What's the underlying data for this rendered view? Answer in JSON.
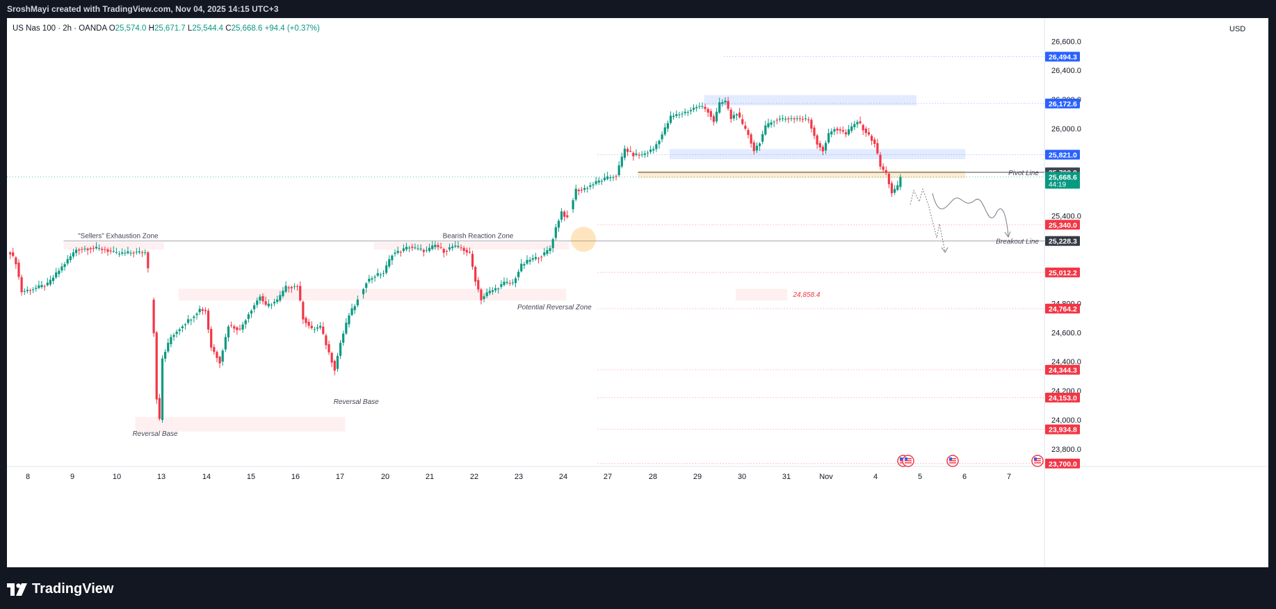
{
  "caption": "SroshMayi created with TradingView.com, Nov 04, 2025 14:15 UTC+3",
  "brand": "TradingView",
  "legend": {
    "symbol": "US Nas 100 · 2h · OANDA",
    "o_label": "O",
    "o": "25,574.0",
    "h_label": "H",
    "h": "25,671.7",
    "l_label": "L",
    "l": "25,544.4",
    "c_label": "C",
    "c": "25,668.6",
    "change": "+94.4 (+0.37%)"
  },
  "currency": "USD",
  "colors": {
    "up": "#089981",
    "down": "#f23645",
    "blue_zone": "#2962ff",
    "red_zone": "#f23645",
    "orange": "#ff9800"
  },
  "chart_data": {
    "type": "candlestick",
    "ylim": [
      23680,
      26740
    ],
    "y_ticks": [
      "26,600.0",
      "26,400.0",
      "26,200.0",
      "26,000.0",
      "25,400.0",
      "24,800.0",
      "24,600.0",
      "24,400.0",
      "24,200.0",
      "24,000.0",
      "23,800.0"
    ],
    "x_ticks": [
      "8",
      "9",
      "10",
      "13",
      "14",
      "15",
      "16",
      "17",
      "20",
      "21",
      "22",
      "23",
      "24",
      "27",
      "28",
      "29",
      "30",
      "31",
      "Nov",
      "4",
      "5",
      "6",
      "7"
    ],
    "price_tags": [
      {
        "label": "26,494.3",
        "value": 26494.3,
        "color": "#2962ff"
      },
      {
        "label": "26,172.6",
        "value": 26172.6,
        "color": "#2962ff"
      },
      {
        "label": "25,821.0",
        "value": 25821.0,
        "color": "#2962ff"
      },
      {
        "label": "25,700.0",
        "value": 25700.0,
        "color": "#434651"
      },
      {
        "label": "25,668.6",
        "value": 25668.6,
        "color": "#089981",
        "sub": "44:19"
      },
      {
        "label": "25,340.0",
        "value": 25340.0,
        "color": "#f23645"
      },
      {
        "label": "25,228.3",
        "value": 25228.3,
        "color": "#363a45"
      },
      {
        "label": "25,012.2",
        "value": 25012.2,
        "color": "#f23645"
      },
      {
        "label": "24,764.2",
        "value": 24764.2,
        "color": "#f23645"
      },
      {
        "label": "24,344.3",
        "value": 24344.3,
        "color": "#f23645"
      },
      {
        "label": "24,153.0",
        "value": 24153.0,
        "color": "#f23645"
      },
      {
        "label": "23,934.8",
        "value": 23934.8,
        "color": "#f23645"
      },
      {
        "label": "23,700.0",
        "value": 23700.0,
        "color": "#f23645"
      }
    ],
    "annotations": {
      "sellers_zone": "\"Sellers\" Exhaustion Zone",
      "bearish_zone": "Bearish Reaction Zone",
      "potential_reversal": "Potential Reversal Zone",
      "reversal_base_1": "Reversal Base",
      "reversal_base_2": "Reversal Base",
      "pivot_line": "Pivot Line",
      "breakout_line": "Breakout Line",
      "level_label": "24,858.4"
    },
    "waypoints": [
      [
        0,
        25150
      ],
      [
        2,
        25080
      ],
      [
        4,
        24880
      ],
      [
        8,
        24900
      ],
      [
        13,
        24930
      ],
      [
        18,
        25050
      ],
      [
        23,
        25170
      ],
      [
        28,
        25180
      ],
      [
        33,
        25170
      ],
      [
        37,
        25140
      ],
      [
        43,
        25150
      ],
      [
        47,
        25150
      ],
      [
        48,
        25050
      ],
      [
        50,
        24600
      ],
      [
        51,
        24150
      ],
      [
        52,
        24000
      ],
      [
        53,
        24420
      ],
      [
        56,
        24570
      ],
      [
        60,
        24650
      ],
      [
        63,
        24700
      ],
      [
        66,
        24760
      ],
      [
        68,
        24750
      ],
      [
        70,
        24500
      ],
      [
        73,
        24400
      ],
      [
        76,
        24650
      ],
      [
        80,
        24620
      ],
      [
        83,
        24730
      ],
      [
        87,
        24850
      ],
      [
        89,
        24780
      ],
      [
        93,
        24820
      ],
      [
        96,
        24910
      ],
      [
        100,
        24920
      ],
      [
        102,
        24700
      ],
      [
        105,
        24620
      ],
      [
        108,
        24640
      ],
      [
        111,
        24460
      ],
      [
        113,
        24350
      ],
      [
        115,
        24530
      ],
      [
        118,
        24720
      ],
      [
        121,
        24820
      ],
      [
        124,
        24950
      ],
      [
        127,
        24990
      ],
      [
        130,
        25010
      ],
      [
        133,
        25140
      ],
      [
        136,
        25160
      ],
      [
        139,
        25190
      ],
      [
        142,
        25170
      ],
      [
        145,
        25160
      ],
      [
        148,
        25200
      ],
      [
        151,
        25160
      ],
      [
        154,
        25190
      ],
      [
        157,
        25180
      ],
      [
        160,
        25140
      ],
      [
        162,
        24960
      ],
      [
        164,
        24830
      ],
      [
        166,
        24870
      ],
      [
        169,
        24900
      ],
      [
        172,
        24940
      ],
      [
        175,
        24940
      ],
      [
        178,
        25060
      ],
      [
        181,
        25100
      ],
      [
        183,
        25110
      ],
      [
        186,
        25140
      ],
      [
        188,
        25180
      ],
      [
        190,
        25320
      ],
      [
        192,
        25430
      ],
      [
        194,
        25380
      ],
      [
        197,
        25580
      ],
      [
        199,
        25580
      ],
      [
        202,
        25610
      ],
      [
        205,
        25640
      ],
      [
        208,
        25660
      ],
      [
        211,
        25680
      ],
      [
        214,
        25860
      ],
      [
        217,
        25820
      ],
      [
        220,
        25820
      ],
      [
        224,
        25860
      ],
      [
        227,
        25960
      ],
      [
        230,
        26080
      ],
      [
        233,
        26100
      ],
      [
        236,
        26120
      ],
      [
        239,
        26150
      ],
      [
        241,
        26150
      ],
      [
        243,
        26120
      ],
      [
        245,
        26050
      ],
      [
        247,
        26170
      ],
      [
        249,
        26190
      ],
      [
        251,
        26070
      ],
      [
        253,
        26110
      ],
      [
        255,
        26020
      ],
      [
        257,
        25960
      ],
      [
        259,
        25850
      ],
      [
        261,
        25910
      ],
      [
        263,
        26010
      ],
      [
        266,
        26060
      ],
      [
        270,
        26070
      ],
      [
        274,
        26070
      ],
      [
        278,
        26060
      ],
      [
        281,
        25900
      ],
      [
        283,
        25850
      ],
      [
        285,
        25960
      ],
      [
        287,
        26000
      ],
      [
        289,
        25990
      ],
      [
        291,
        25960
      ],
      [
        293,
        26010
      ],
      [
        295,
        26050
      ],
      [
        297,
        26000
      ],
      [
        299,
        25950
      ],
      [
        301,
        25900
      ],
      [
        303,
        25740
      ],
      [
        305,
        25690
      ],
      [
        307,
        25560
      ],
      [
        309,
        25600
      ],
      [
        310,
        25668.6
      ]
    ]
  }
}
